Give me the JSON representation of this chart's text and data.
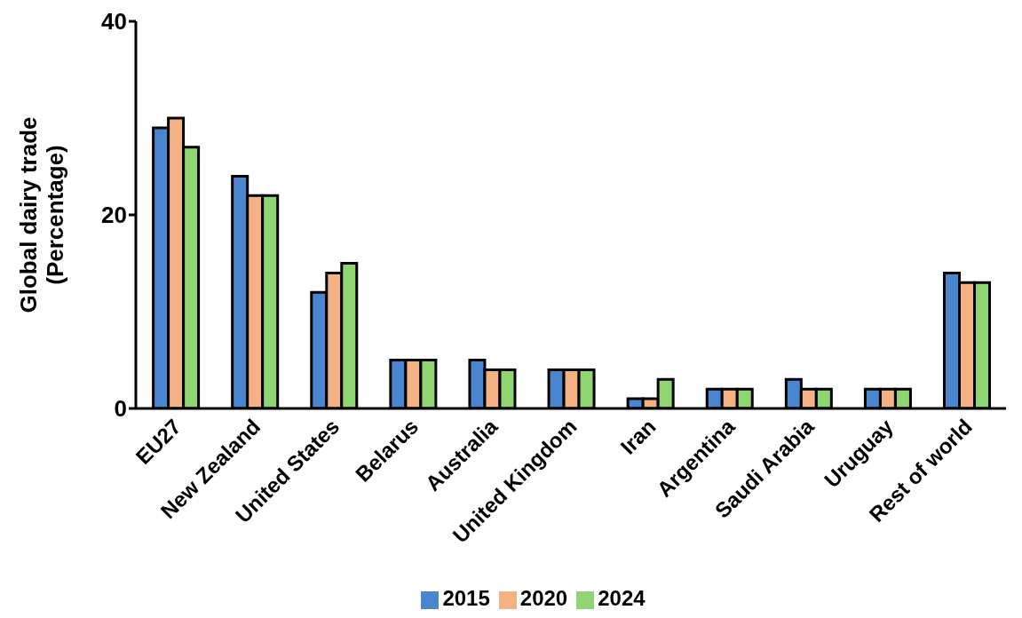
{
  "chart_data": {
    "type": "bar",
    "ylabel": "Global dairy trade\n(Percentage)",
    "categories": [
      "EU27",
      "New Zealand",
      "United States",
      "Belarus",
      "Australia",
      "United Kingdom",
      "Iran",
      "Argentina",
      "Saudi Arabia",
      "Uruguay",
      "Rest of world"
    ],
    "series": [
      {
        "name": "2015",
        "color": "#4a86d0",
        "values": [
          29,
          24,
          12,
          5,
          5,
          4,
          1,
          2,
          3,
          2,
          14
        ]
      },
      {
        "name": "2020",
        "color": "#f4b183",
        "values": [
          30,
          22,
          14,
          5,
          4,
          4,
          1,
          2,
          2,
          2,
          13
        ]
      },
      {
        "name": "2024",
        "color": "#8fd672",
        "values": [
          27,
          22,
          15,
          5,
          4,
          4,
          3,
          2,
          2,
          2,
          13
        ]
      }
    ],
    "ylim": [
      0,
      40
    ],
    "yticks": [
      0,
      20,
      40
    ],
    "grid": false,
    "legend": "bottom"
  }
}
